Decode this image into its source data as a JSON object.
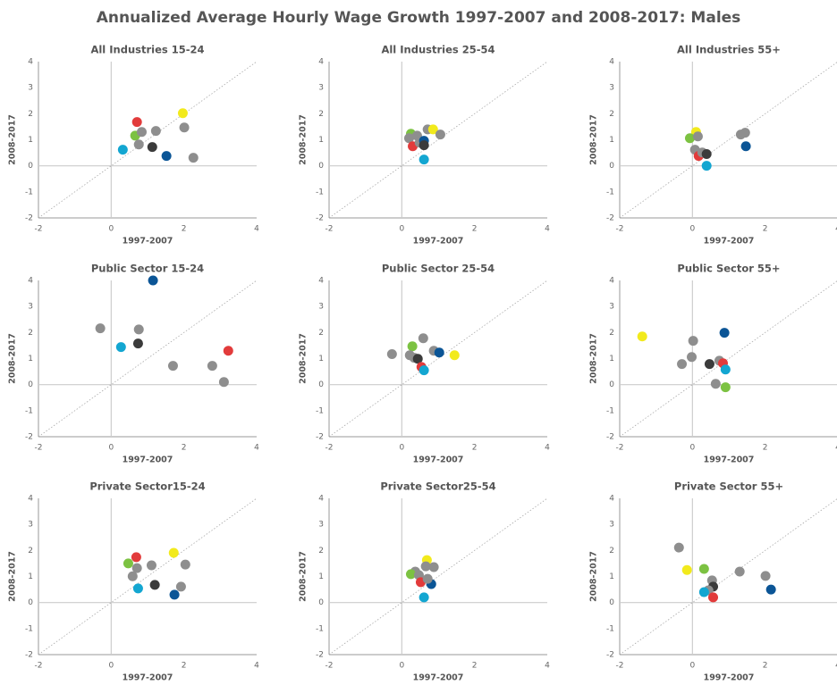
{
  "title": "Annualized Average Hourly Wage Growth 1997-2007 and 2008-2017: Males",
  "chart_data": [
    {
      "type": "scatter",
      "title": "All Industries 15-24",
      "xlabel": "1997-2007",
      "ylabel": "2008-2017",
      "xlim": [
        -2,
        4
      ],
      "ylim": [
        -2,
        4
      ],
      "xticks": [
        -2,
        0,
        2,
        4
      ],
      "yticks": [
        -2,
        -1,
        0,
        1,
        2,
        3,
        4
      ],
      "x": [
        0.71,
        0.66,
        0.84,
        0.76,
        1.13,
        1.23,
        1.97,
        2.01,
        0.32,
        1.52,
        2.26
      ],
      "y": [
        1.68,
        1.16,
        1.3,
        0.82,
        0.72,
        1.34,
        2.02,
        1.47,
        0.62,
        0.38,
        0.31
      ],
      "colors": [
        "#e23b3b",
        "#7cc242",
        "#8e8e8e",
        "#8e8e8e",
        "#3b3b3b",
        "#8e8e8e",
        "#f2ea1c",
        "#8e8e8e",
        "#13a6d1",
        "#0b5596",
        "#8e8e8e"
      ]
    },
    {
      "type": "scatter",
      "title": "All Industries 25-54",
      "xlabel": "1997-2007",
      "ylabel": "2008-2017",
      "xlim": [
        -2,
        4
      ],
      "ylim": [
        -2,
        4
      ],
      "xticks": [
        -2,
        0,
        2,
        4
      ],
      "yticks": [
        -2,
        -1,
        0,
        1,
        2,
        3,
        4
      ],
      "x": [
        0.25,
        0.2,
        0.42,
        0.3,
        0.49,
        0.61,
        0.61,
        0.71,
        0.86,
        1.06,
        0.61
      ],
      "y": [
        1.23,
        1.06,
        1.16,
        0.75,
        0.89,
        0.96,
        0.79,
        1.4,
        1.4,
        1.2,
        0.24
      ],
      "colors": [
        "#7cc242",
        "#8e8e8e",
        "#8e8e8e",
        "#e23b3b",
        "#8e8e8e",
        "#0b5596",
        "#3b3b3b",
        "#8e8e8e",
        "#f2ea1c",
        "#8e8e8e",
        "#13a6d1"
      ]
    },
    {
      "type": "scatter",
      "title": "All Industries 55+",
      "xlabel": "1997-2007",
      "ylabel": "2008-2017",
      "xlim": [
        -2,
        4
      ],
      "ylim": [
        -2,
        4
      ],
      "xticks": [
        -2,
        0,
        2,
        4
      ],
      "yticks": [
        -2,
        -1,
        0,
        1,
        2,
        3,
        4
      ],
      "x": [
        0.1,
        -0.07,
        0.15,
        0.07,
        0.17,
        0.27,
        0.39,
        0.39,
        1.33,
        1.45,
        1.47
      ],
      "y": [
        1.3,
        1.06,
        1.13,
        0.62,
        0.38,
        0.51,
        0.45,
        0.0,
        1.2,
        1.27,
        0.75
      ],
      "colors": [
        "#f2ea1c",
        "#7cc242",
        "#8e8e8e",
        "#8e8e8e",
        "#e23b3b",
        "#8e8e8e",
        "#3b3b3b",
        "#13a6d1",
        "#8e8e8e",
        "#8e8e8e",
        "#0b5596"
      ]
    },
    {
      "type": "scatter",
      "title": "Public Sector 15-24",
      "xlabel": "1997-2007",
      "ylabel": "2008-2017",
      "xlim": [
        -2,
        4
      ],
      "ylim": [
        -2,
        4
      ],
      "xticks": [
        -2,
        0,
        2,
        4
      ],
      "yticks": [
        -2,
        -1,
        0,
        1,
        2,
        3,
        4
      ],
      "x": [
        1.15,
        -0.3,
        0.76,
        0.27,
        0.74,
        1.7,
        2.78,
        3.22,
        3.1
      ],
      "y": [
        4.0,
        2.16,
        2.12,
        1.44,
        1.58,
        0.72,
        0.72,
        1.3,
        0.1
      ],
      "colors": [
        "#0b5596",
        "#8e8e8e",
        "#8e8e8e",
        "#13a6d1",
        "#3b3b3b",
        "#8e8e8e",
        "#8e8e8e",
        "#e23b3b",
        "#8e8e8e"
      ]
    },
    {
      "type": "scatter",
      "title": "Public Sector 25-54",
      "xlabel": "1997-2007",
      "ylabel": "2008-2017",
      "xlim": [
        -2,
        4
      ],
      "ylim": [
        -2,
        4
      ],
      "xticks": [
        -2,
        0,
        2,
        4
      ],
      "yticks": [
        -2,
        -1,
        0,
        1,
        2,
        3,
        4
      ],
      "x": [
        -0.27,
        0.59,
        0.29,
        0.22,
        0.34,
        0.44,
        0.54,
        0.61,
        0.88,
        1.03,
        1.45
      ],
      "y": [
        1.17,
        1.78,
        1.47,
        1.13,
        1.03,
        0.99,
        0.68,
        0.55,
        1.3,
        1.23,
        1.13
      ],
      "colors": [
        "#8e8e8e",
        "#8e8e8e",
        "#7cc242",
        "#8e8e8e",
        "#8e8e8e",
        "#3b3b3b",
        "#e23b3b",
        "#13a6d1",
        "#8e8e8e",
        "#0b5596",
        "#f2ea1c"
      ]
    },
    {
      "type": "scatter",
      "title": "Public Sector 55+",
      "xlabel": "1997-2007",
      "ylabel": "2008-2017",
      "xlim": [
        -2,
        4
      ],
      "ylim": [
        -2,
        4
      ],
      "xticks": [
        -2,
        0,
        2,
        4
      ],
      "yticks": [
        -2,
        -1,
        0,
        1,
        2,
        3,
        4
      ],
      "x": [
        -1.38,
        0.02,
        -0.02,
        -0.29,
        0.47,
        0.74,
        0.84,
        0.88,
        0.91,
        0.64,
        0.91
      ],
      "y": [
        1.85,
        1.68,
        1.06,
        0.79,
        0.79,
        0.92,
        0.82,
        1.99,
        0.58,
        0.03,
        -0.1
      ],
      "colors": [
        "#f2ea1c",
        "#8e8e8e",
        "#8e8e8e",
        "#8e8e8e",
        "#3b3b3b",
        "#8e8e8e",
        "#e23b3b",
        "#0b5596",
        "#13a6d1",
        "#8e8e8e",
        "#7cc242"
      ]
    },
    {
      "type": "scatter",
      "title": "Private Sector15-24",
      "xlabel": "1997-2007",
      "ylabel": "2008-2017",
      "xlim": [
        -2,
        4
      ],
      "ylim": [
        -2,
        4
      ],
      "xticks": [
        -2,
        0,
        2,
        4
      ],
      "yticks": [
        -2,
        -1,
        0,
        1,
        2,
        3,
        4
      ],
      "x": [
        0.69,
        0.47,
        0.71,
        0.59,
        1.11,
        0.74,
        1.2,
        1.72,
        2.04,
        1.92,
        1.74
      ],
      "y": [
        1.74,
        1.5,
        1.32,
        1.01,
        1.43,
        0.54,
        0.68,
        1.91,
        1.46,
        0.61,
        0.3
      ],
      "colors": [
        "#e23b3b",
        "#7cc242",
        "#8e8e8e",
        "#8e8e8e",
        "#8e8e8e",
        "#13a6d1",
        "#3b3b3b",
        "#f2ea1c",
        "#8e8e8e",
        "#8e8e8e",
        "#0b5596"
      ]
    },
    {
      "type": "scatter",
      "title": "Private Sector25-54",
      "xlabel": "1997-2007",
      "ylabel": "2008-2017",
      "xlim": [
        -2,
        4
      ],
      "ylim": [
        -2,
        4
      ],
      "xticks": [
        -2,
        0,
        2,
        4
      ],
      "yticks": [
        -2,
        -1,
        0,
        1,
        2,
        3,
        4
      ],
      "x": [
        0.69,
        0.66,
        0.88,
        0.37,
        0.25,
        0.47,
        0.52,
        0.81,
        0.61,
        0.71
      ],
      "y": [
        1.63,
        1.39,
        1.36,
        1.19,
        1.09,
        1.05,
        0.78,
        0.71,
        0.2,
        0.91
      ],
      "colors": [
        "#f2ea1c",
        "#8e8e8e",
        "#8e8e8e",
        "#8e8e8e",
        "#7cc242",
        "#8e8e8e",
        "#e23b3b",
        "#0b5596",
        "#13a6d1",
        "#8e8e8e"
      ]
    },
    {
      "type": "scatter",
      "title": "Private Sector 55+",
      "xlabel": "1997-2007",
      "ylabel": "2008-2017",
      "xlim": [
        -2,
        4
      ],
      "ylim": [
        -2,
        4
      ],
      "xticks": [
        -2,
        0,
        2,
        4
      ],
      "yticks": [
        -2,
        -1,
        0,
        1,
        2,
        3,
        4
      ],
      "x": [
        -0.37,
        -0.15,
        0.32,
        1.3,
        2.01,
        2.16,
        0.54,
        0.57,
        0.44,
        0.32,
        0.57
      ],
      "y": [
        2.11,
        1.25,
        1.29,
        1.19,
        1.02,
        0.5,
        0.85,
        0.61,
        0.47,
        0.4,
        0.2
      ],
      "colors": [
        "#8e8e8e",
        "#f2ea1c",
        "#7cc242",
        "#8e8e8e",
        "#8e8e8e",
        "#0b5596",
        "#8e8e8e",
        "#3b3b3b",
        "#8e8e8e",
        "#13a6d1",
        "#e23b3b"
      ]
    }
  ]
}
